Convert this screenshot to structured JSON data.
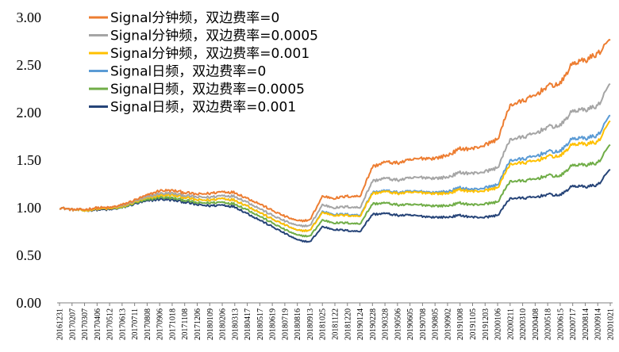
{
  "chart_data": {
    "type": "line",
    "title": "",
    "xlabel": "",
    "ylabel": "",
    "ylim": [
      0,
      3.0
    ],
    "yticks": [
      "0.00",
      "0.50",
      "1.00",
      "1.50",
      "2.00",
      "2.50",
      "3.00"
    ],
    "grid": false,
    "legend_position": "top-left",
    "x_tick_labels": [
      "20161231",
      "20170207",
      "20170307",
      "20170406",
      "20170512",
      "20170613",
      "20170711",
      "20170808",
      "20170906",
      "20171018",
      "20171108",
      "20171206",
      "20180109",
      "20180206",
      "20180313",
      "20180417",
      "20180517",
      "20180619",
      "20180719",
      "20180816",
      "20180913",
      "20181025",
      "20181122",
      "20181220",
      "20190124",
      "20190228",
      "20190328",
      "20190506",
      "20190605",
      "20190708",
      "20190805",
      "20190902",
      "20191008",
      "20191105",
      "20191203",
      "20200106",
      "20200211",
      "20200310",
      "20200408",
      "20200518",
      "20200615",
      "20200717",
      "20200814",
      "20200914",
      "20201021"
    ],
    "series": [
      {
        "name": "Signal分钟频，双边费率=0",
        "color": "#ED7D31",
        "values": [
          1.0,
          0.98,
          0.98,
          1.0,
          1.0,
          1.03,
          1.08,
          1.13,
          1.18,
          1.18,
          1.16,
          1.14,
          1.15,
          1.17,
          1.16,
          1.1,
          1.04,
          0.97,
          0.91,
          0.86,
          0.87,
          1.12,
          1.1,
          1.12,
          1.12,
          1.43,
          1.48,
          1.47,
          1.5,
          1.52,
          1.52,
          1.55,
          1.62,
          1.62,
          1.66,
          1.72,
          2.08,
          2.12,
          2.18,
          2.28,
          2.3,
          2.52,
          2.55,
          2.62,
          2.76
        ]
      },
      {
        "name": "Signal分钟频，双边费率=0.0005",
        "color": "#A5A5A5",
        "values": [
          1.0,
          0.98,
          0.98,
          1.0,
          1.0,
          1.02,
          1.07,
          1.11,
          1.15,
          1.15,
          1.13,
          1.11,
          1.11,
          1.13,
          1.12,
          1.06,
          0.99,
          0.92,
          0.86,
          0.81,
          0.81,
          1.03,
          1.0,
          1.01,
          1.0,
          1.28,
          1.31,
          1.29,
          1.31,
          1.32,
          1.31,
          1.32,
          1.37,
          1.36,
          1.38,
          1.42,
          1.72,
          1.74,
          1.78,
          1.85,
          1.86,
          2.02,
          2.03,
          2.07,
          2.3
        ]
      },
      {
        "name": "Signal分钟频，双边费率=0.001",
        "color": "#FFC000",
        "values": [
          1.0,
          0.98,
          0.97,
          0.99,
          0.99,
          1.01,
          1.06,
          1.1,
          1.13,
          1.13,
          1.11,
          1.08,
          1.08,
          1.1,
          1.08,
          1.02,
          0.95,
          0.88,
          0.82,
          0.76,
          0.76,
          0.95,
          0.92,
          0.92,
          0.91,
          1.15,
          1.17,
          1.15,
          1.16,
          1.16,
          1.15,
          1.15,
          1.19,
          1.17,
          1.18,
          1.21,
          1.46,
          1.47,
          1.49,
          1.54,
          1.54,
          1.67,
          1.67,
          1.69,
          1.91
        ]
      },
      {
        "name": "Signal日频，双边费率=0",
        "color": "#5B9BD5",
        "values": [
          1.0,
          0.98,
          0.97,
          0.99,
          0.99,
          1.01,
          1.06,
          1.1,
          1.13,
          1.13,
          1.11,
          1.08,
          1.08,
          1.1,
          1.08,
          1.02,
          0.95,
          0.88,
          0.82,
          0.76,
          0.76,
          0.96,
          0.93,
          0.93,
          0.92,
          1.16,
          1.18,
          1.16,
          1.17,
          1.17,
          1.16,
          1.17,
          1.21,
          1.19,
          1.21,
          1.24,
          1.5,
          1.51,
          1.54,
          1.59,
          1.59,
          1.73,
          1.73,
          1.76,
          1.97
        ]
      },
      {
        "name": "Signal日频，双边费率=0.0005",
        "color": "#70AD47",
        "values": [
          1.0,
          0.98,
          0.97,
          0.99,
          0.99,
          1.0,
          1.05,
          1.08,
          1.11,
          1.1,
          1.08,
          1.05,
          1.05,
          1.06,
          1.04,
          0.98,
          0.91,
          0.84,
          0.77,
          0.71,
          0.7,
          0.87,
          0.84,
          0.84,
          0.83,
          1.04,
          1.05,
          1.03,
          1.03,
          1.03,
          1.02,
          1.02,
          1.05,
          1.03,
          1.04,
          1.06,
          1.28,
          1.28,
          1.3,
          1.34,
          1.33,
          1.45,
          1.45,
          1.47,
          1.66
        ]
      },
      {
        "name": "Signal日频，双边费率=0.001",
        "color": "#264478",
        "values": [
          1.0,
          0.98,
          0.97,
          0.98,
          0.98,
          1.0,
          1.04,
          1.07,
          1.09,
          1.08,
          1.06,
          1.03,
          1.02,
          1.03,
          1.01,
          0.94,
          0.87,
          0.8,
          0.73,
          0.66,
          0.64,
          0.8,
          0.77,
          0.76,
          0.75,
          0.93,
          0.94,
          0.92,
          0.92,
          0.91,
          0.9,
          0.9,
          0.92,
          0.9,
          0.9,
          0.92,
          1.1,
          1.1,
          1.11,
          1.14,
          1.13,
          1.23,
          1.22,
          1.24,
          1.4
        ]
      }
    ]
  }
}
